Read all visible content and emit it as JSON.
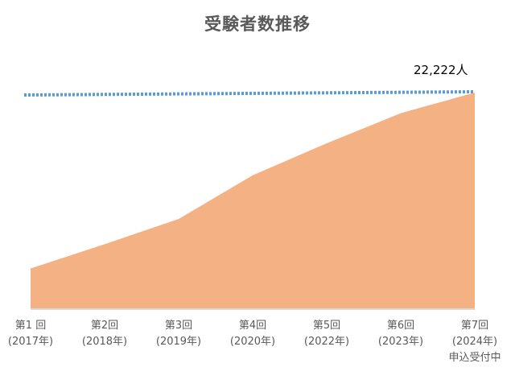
{
  "chart_data": {
    "type": "area",
    "title": "受験者数推移",
    "categories": [
      {
        "line1": "第1 回",
        "line2": "(2017年)",
        "line3": ""
      },
      {
        "line1": "第2回",
        "line2": "(2018年)",
        "line3": ""
      },
      {
        "line1": "第3回",
        "line2": "(2019年)",
        "line3": ""
      },
      {
        "line1": "第4回",
        "line2": "(2020年)",
        "line3": ""
      },
      {
        "line1": "第5回",
        "line2": "(2022年)",
        "line3": ""
      },
      {
        "line1": "第6回",
        "line2": "(2023年)",
        "line3": ""
      },
      {
        "line1": "第7回",
        "line2": "(2024年)",
        "line3": "申込受付中"
      }
    ],
    "values": [
      4100,
      6600,
      9200,
      13700,
      17000,
      20100,
      22222
    ],
    "reference_line": {
      "value": 22222,
      "style": "dotted"
    },
    "annotation": "22,222人",
    "ylim": [
      0,
      22222
    ],
    "y_axis_visible": false,
    "grid": false,
    "legend": "none",
    "colors": {
      "area": "#F4B183",
      "reference": "#5B9BD5",
      "baseline": "#D9D9D9"
    }
  }
}
